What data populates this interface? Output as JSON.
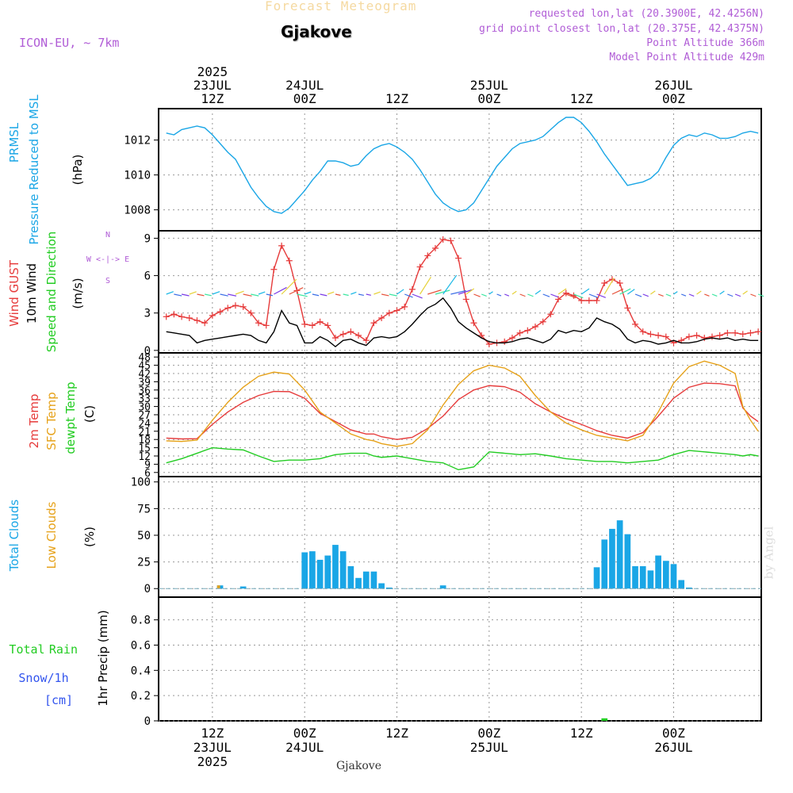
{
  "header": {
    "forecast_label": "Forecast Meteogram",
    "location": "Gjakove",
    "model": "ICON-EU, ~ 7km",
    "requested": "requested lon,lat (20.3900E, 42.4256N)",
    "grid_point": "grid point closest lon,lat (20.375E, 42.4375N)",
    "point_altitude": "Point Altitude 366m",
    "model_altitude": "Model Point Altitude 429m",
    "footer_location": "Gjakove",
    "watermark": "by Angel"
  },
  "colors": {
    "pressure": "#1aa6e6",
    "gust": "#e63b3b",
    "wind": "#000000",
    "temp2m": "#e63b3b",
    "sfc": "#e6a21a",
    "dewpt": "#22cc22",
    "clouds_total": "#1aa6e6",
    "clouds_low": "#e6a21a",
    "rain": "#22cc22",
    "snow": "#3355ee",
    "purple": "#b05cd6"
  },
  "time_axis": {
    "top": [
      {
        "t": 6,
        "lines": [
          "2025",
          "23JUL",
          "12Z"
        ]
      },
      {
        "t": 18,
        "lines": [
          "24JUL",
          "00Z"
        ]
      },
      {
        "t": 30,
        "lines": [
          "12Z"
        ]
      },
      {
        "t": 42,
        "lines": [
          "25JUL",
          "00Z"
        ]
      },
      {
        "t": 54,
        "lines": [
          "12Z"
        ]
      },
      {
        "t": 66,
        "lines": [
          "26JUL",
          "00Z"
        ]
      }
    ],
    "bottom": [
      {
        "t": 6,
        "lines": [
          "12Z",
          "23JUL",
          "2025"
        ]
      },
      {
        "t": 18,
        "lines": [
          "00Z",
          "24JUL"
        ]
      },
      {
        "t": 30,
        "lines": [
          "12Z"
        ]
      },
      {
        "t": 42,
        "lines": [
          "00Z",
          "25JUL"
        ]
      },
      {
        "t": 54,
        "lines": [
          "12Z"
        ]
      },
      {
        "t": 66,
        "lines": [
          "00Z",
          "26JUL"
        ]
      }
    ]
  },
  "chart_data": [
    {
      "type": "line",
      "panel": "pressure",
      "labels": [
        "PRMSL",
        "Pressure Reduced to MSL",
        "(hPa)"
      ],
      "y_ticks": [
        1008,
        1010,
        1012
      ],
      "ylim": [
        1006.8,
        1013.8
      ],
      "x_unit": "hours from 2025-07-23 06Z",
      "series": [
        {
          "x": [
            0,
            1,
            2,
            3,
            4,
            5,
            6,
            7,
            8,
            9,
            10,
            11,
            12,
            13,
            14,
            15,
            16,
            17,
            18,
            19,
            20,
            21,
            22,
            23,
            24,
            25,
            26,
            27,
            28,
            29,
            30,
            31,
            32,
            33,
            34,
            35,
            36,
            37,
            38,
            39,
            40,
            41,
            42,
            43,
            44,
            45,
            46,
            47,
            48,
            49,
            50,
            51,
            52,
            53,
            54,
            55,
            56,
            57,
            58,
            59,
            60,
            61,
            62,
            63,
            64,
            65,
            66,
            67,
            68,
            69,
            70,
            71,
            72,
            73,
            74,
            75,
            76,
            77
          ],
          "y": [
            1012.4,
            1012.3,
            1012.6,
            1012.7,
            1012.8,
            1012.7,
            1012.3,
            1011.8,
            1011.3,
            1010.9,
            1010.1,
            1009.3,
            1008.7,
            1008.2,
            1007.9,
            1007.8,
            1008.1,
            1008.6,
            1009.1,
            1009.7,
            1010.2,
            1010.8,
            1010.8,
            1010.7,
            1010.5,
            1010.6,
            1011.1,
            1011.5,
            1011.7,
            1011.8,
            1011.6,
            1011.3,
            1010.9,
            1010.3,
            1009.6,
            1008.9,
            1008.4,
            1008.1,
            1007.9,
            1008.0,
            1008.4,
            1009.1,
            1009.8,
            1010.5,
            1011.0,
            1011.5,
            1011.8,
            1011.9,
            1012.0,
            1012.2,
            1012.6,
            1013.0,
            1013.3,
            1013.3,
            1013.0,
            1012.5,
            1011.9,
            1011.2,
            1010.6,
            1010.0,
            1009.4,
            1009.5,
            1009.6,
            1009.8,
            1010.2,
            1011.0,
            1011.7,
            1012.1,
            1012.3,
            1012.2,
            1012.4,
            1012.3,
            1012.1,
            1012.1,
            1012.2,
            1012.4,
            1012.5,
            1012.4
          ]
        }
      ]
    },
    {
      "type": "line",
      "panel": "wind",
      "labels": [
        "Wind GUST",
        "10m Wind",
        "Speed and Direction",
        "(m/s)"
      ],
      "compass": [
        "N",
        "W <-|-> E",
        "S"
      ],
      "y_ticks": [
        0,
        3,
        6,
        9
      ],
      "ylim": [
        -0.2,
        9.6
      ],
      "series": [
        {
          "name": "Wind GUST",
          "x": [
            0,
            1,
            2,
            3,
            4,
            5,
            6,
            7,
            8,
            9,
            10,
            11,
            12,
            13,
            14,
            15,
            16,
            17,
            18,
            19,
            20,
            21,
            22,
            23,
            24,
            25,
            26,
            27,
            28,
            29,
            30,
            31,
            32,
            33,
            34,
            35,
            36,
            37,
            38,
            39,
            40,
            41,
            42,
            43,
            44,
            45,
            46,
            47,
            48,
            49,
            50,
            51,
            52,
            53,
            54,
            55,
            56,
            57,
            58,
            59,
            60,
            61,
            62,
            63,
            64,
            65,
            66,
            67,
            68,
            69,
            70,
            71,
            72,
            73,
            74,
            75,
            76,
            77
          ],
          "y": [
            2.7,
            2.9,
            2.7,
            2.6,
            2.4,
            2.2,
            2.8,
            3.1,
            3.4,
            3.6,
            3.5,
            3.0,
            2.2,
            2.0,
            6.5,
            8.4,
            7.2,
            4.8,
            2.1,
            2.0,
            2.3,
            2.0,
            1.0,
            1.3,
            1.5,
            1.2,
            0.8,
            2.2,
            2.6,
            3.0,
            3.2,
            3.5,
            4.9,
            6.7,
            7.6,
            8.2,
            8.9,
            8.8,
            7.4,
            4.1,
            2.2,
            1.2,
            0.5,
            0.6,
            0.7,
            1.0,
            1.4,
            1.6,
            1.9,
            2.3,
            2.9,
            4.1,
            4.6,
            4.4,
            4.0,
            4.0,
            4.0,
            5.4,
            5.7,
            5.4,
            3.4,
            2.1,
            1.5,
            1.3,
            1.2,
            1.1,
            0.6,
            0.8,
            1.1,
            1.2,
            1.0,
            1.1,
            1.2,
            1.4,
            1.4,
            1.3,
            1.4,
            1.5
          ]
        },
        {
          "name": "10m Wind",
          "x": [
            0,
            1,
            2,
            3,
            4,
            5,
            6,
            7,
            8,
            9,
            10,
            11,
            12,
            13,
            14,
            15,
            16,
            17,
            18,
            19,
            20,
            21,
            22,
            23,
            24,
            25,
            26,
            27,
            28,
            29,
            30,
            31,
            32,
            33,
            34,
            35,
            36,
            37,
            38,
            39,
            40,
            41,
            42,
            43,
            44,
            45,
            46,
            47,
            48,
            49,
            50,
            51,
            52,
            53,
            54,
            55,
            56,
            57,
            58,
            59,
            60,
            61,
            62,
            63,
            64,
            65,
            66,
            67,
            68,
            69,
            70,
            71,
            72,
            73,
            74,
            75,
            76,
            77
          ],
          "y": [
            1.5,
            1.4,
            1.3,
            1.2,
            0.6,
            0.8,
            0.9,
            1.0,
            1.1,
            1.2,
            1.3,
            1.2,
            0.8,
            0.6,
            1.5,
            3.2,
            2.2,
            2.0,
            0.6,
            0.6,
            1.1,
            0.8,
            0.3,
            0.8,
            0.9,
            0.6,
            0.4,
            1.0,
            1.1,
            1.0,
            1.1,
            1.5,
            2.1,
            2.8,
            3.4,
            3.7,
            4.2,
            3.4,
            2.3,
            1.8,
            1.4,
            1.0,
            0.7,
            0.6,
            0.6,
            0.7,
            0.9,
            1.0,
            0.8,
            0.6,
            0.9,
            1.6,
            1.4,
            1.6,
            1.5,
            1.8,
            2.6,
            2.3,
            2.1,
            1.7,
            0.9,
            0.6,
            0.8,
            0.7,
            0.5,
            0.6,
            0.8,
            0.6,
            0.6,
            0.7,
            0.9,
            1.0,
            0.9,
            1.0,
            0.8,
            0.9,
            0.8,
            0.8
          ]
        }
      ]
    },
    {
      "type": "line",
      "panel": "temperature",
      "labels": [
        "2m Temp",
        "SFC Temp",
        "dewpt Temp",
        "(C)"
      ],
      "y_ticks": [
        6,
        9,
        12,
        15,
        18,
        21,
        24,
        27,
        30,
        33,
        36,
        39,
        42,
        45,
        48
      ],
      "ylim": [
        4.5,
        49.5
      ],
      "series": [
        {
          "name": "2m Temp",
          "x": [
            0,
            2,
            4,
            6,
            8,
            10,
            12,
            14,
            16,
            18,
            20,
            22,
            24,
            26,
            27,
            28,
            30,
            32,
            34,
            36,
            38,
            40,
            42,
            44,
            46,
            48,
            50,
            52,
            54,
            56,
            58,
            60,
            62,
            64,
            66,
            68,
            70,
            72,
            74,
            75,
            76,
            77
          ],
          "y": [
            18.5,
            18.2,
            18.3,
            23.5,
            28.0,
            31.5,
            34.0,
            35.5,
            35.4,
            33.0,
            27.5,
            24.5,
            21.5,
            20.0,
            20.0,
            19.0,
            18.0,
            18.8,
            22.0,
            26.5,
            32.5,
            36.0,
            37.6,
            37.2,
            35.2,
            31.0,
            28.0,
            25.5,
            23.5,
            21.2,
            19.5,
            18.5,
            20.5,
            26.5,
            33.0,
            37.0,
            38.5,
            38.3,
            37.5,
            29.5,
            26.5,
            24.5
          ]
        },
        {
          "name": "SFC Temp",
          "x": [
            0,
            2,
            4,
            6,
            8,
            10,
            12,
            14,
            16,
            18,
            20,
            22,
            24,
            26,
            27,
            28,
            30,
            32,
            34,
            36,
            38,
            40,
            42,
            44,
            46,
            48,
            50,
            52,
            54,
            56,
            58,
            60,
            62,
            64,
            66,
            68,
            70,
            72,
            74,
            75,
            76,
            77
          ],
          "y": [
            17.5,
            17.3,
            17.8,
            25.0,
            31.5,
            37.0,
            41.0,
            42.5,
            41.8,
            36.0,
            28.0,
            24.0,
            20.0,
            18.0,
            17.5,
            16.5,
            15.5,
            16.5,
            21.5,
            30.5,
            38.0,
            43.0,
            45.0,
            44.0,
            41.0,
            34.0,
            28.0,
            24.0,
            21.5,
            19.5,
            18.5,
            17.5,
            19.5,
            28.0,
            38.5,
            44.5,
            46.5,
            45.0,
            42.0,
            30.0,
            25.0,
            21.0
          ]
        },
        {
          "name": "dewpt Temp",
          "x": [
            0,
            2,
            4,
            6,
            8,
            10,
            12,
            14,
            16,
            18,
            20,
            22,
            24,
            26,
            27,
            28,
            30,
            32,
            34,
            36,
            38,
            40,
            42,
            44,
            46,
            48,
            50,
            52,
            54,
            56,
            58,
            60,
            62,
            64,
            66,
            68,
            70,
            72,
            74,
            75,
            76,
            77
          ],
          "y": [
            9.5,
            11.0,
            13.0,
            15.0,
            14.5,
            14.2,
            12.0,
            10.0,
            10.5,
            10.5,
            11.0,
            12.5,
            13.0,
            13.0,
            12.0,
            11.5,
            12.0,
            11.0,
            10.0,
            9.5,
            7.0,
            8.0,
            13.5,
            13.0,
            12.5,
            12.8,
            12.0,
            11.0,
            10.5,
            10.0,
            10.0,
            9.5,
            10.0,
            10.5,
            12.5,
            14.0,
            13.5,
            13.0,
            12.5,
            12.0,
            12.5,
            12.0
          ]
        }
      ]
    },
    {
      "type": "bar",
      "panel": "clouds",
      "labels": [
        "Total Clouds",
        "Low Clouds",
        "(%)"
      ],
      "y_ticks": [
        0,
        25,
        50,
        75,
        100
      ],
      "ylim": [
        -8,
        105
      ],
      "series": [
        {
          "name": "Total Clouds",
          "x": [
            7,
            10,
            18,
            19,
            20,
            21,
            22,
            23,
            24,
            25,
            26,
            27,
            28,
            29,
            36,
            56,
            57,
            58,
            59,
            60,
            61,
            62,
            63,
            64,
            65,
            66,
            67,
            68
          ],
          "y": [
            3,
            2,
            34,
            35,
            27,
            31,
            41,
            35,
            21,
            10,
            16,
            16,
            5,
            1,
            3,
            20,
            46,
            56,
            64,
            51,
            21,
            21,
            17,
            31,
            26,
            23,
            8,
            1
          ]
        },
        {
          "name": "Low Clouds",
          "x": [
            7
          ],
          "y": [
            3
          ]
        }
      ]
    },
    {
      "type": "bar",
      "panel": "precip",
      "labels": [
        "Total",
        "Rain",
        "Snow/1h",
        "[cm]",
        "1hr Precip (mm)"
      ],
      "y_ticks": [
        0,
        0.2,
        0.4,
        0.6,
        0.8
      ],
      "ylim": [
        0,
        0.98
      ],
      "series": [
        {
          "name": "Total Rain",
          "x": [
            57
          ],
          "y": [
            0.02
          ]
        }
      ]
    }
  ]
}
